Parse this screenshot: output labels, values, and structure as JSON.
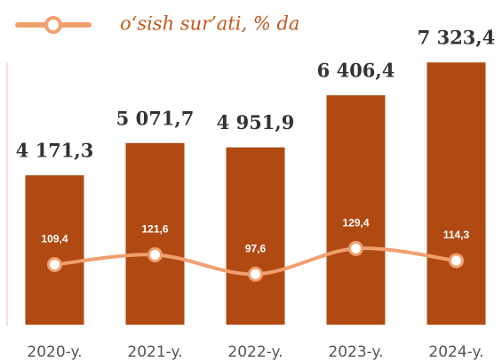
{
  "chart_data": {
    "type": "bar",
    "categories": [
      "2020-y.",
      "2021-y.",
      "2022-y.",
      "2023-y.",
      "2024-y."
    ],
    "series": [
      {
        "name": null,
        "type": "bar",
        "color": "#b04a12",
        "values": [
          4171.3,
          5071.7,
          4951.9,
          6406.4,
          7323.4
        ],
        "value_labels": [
          "4 171,3",
          "5 071,7",
          "4 951,9",
          "6 406,4",
          "7 323,4"
        ]
      },
      {
        "name": "o‘sish sur’ati, % da",
        "type": "line",
        "axis": "y2",
        "color": "#f0a070",
        "values": [
          109.4,
          121.6,
          97.6,
          129.4,
          114.3
        ],
        "value_labels": [
          "109,4",
          "121,6",
          "97,6",
          "129,4",
          "114,3"
        ]
      }
    ],
    "ylim": [
      0,
      8000
    ],
    "y2lim": [
      35,
      390
    ],
    "grid": false,
    "legend": "top"
  }
}
